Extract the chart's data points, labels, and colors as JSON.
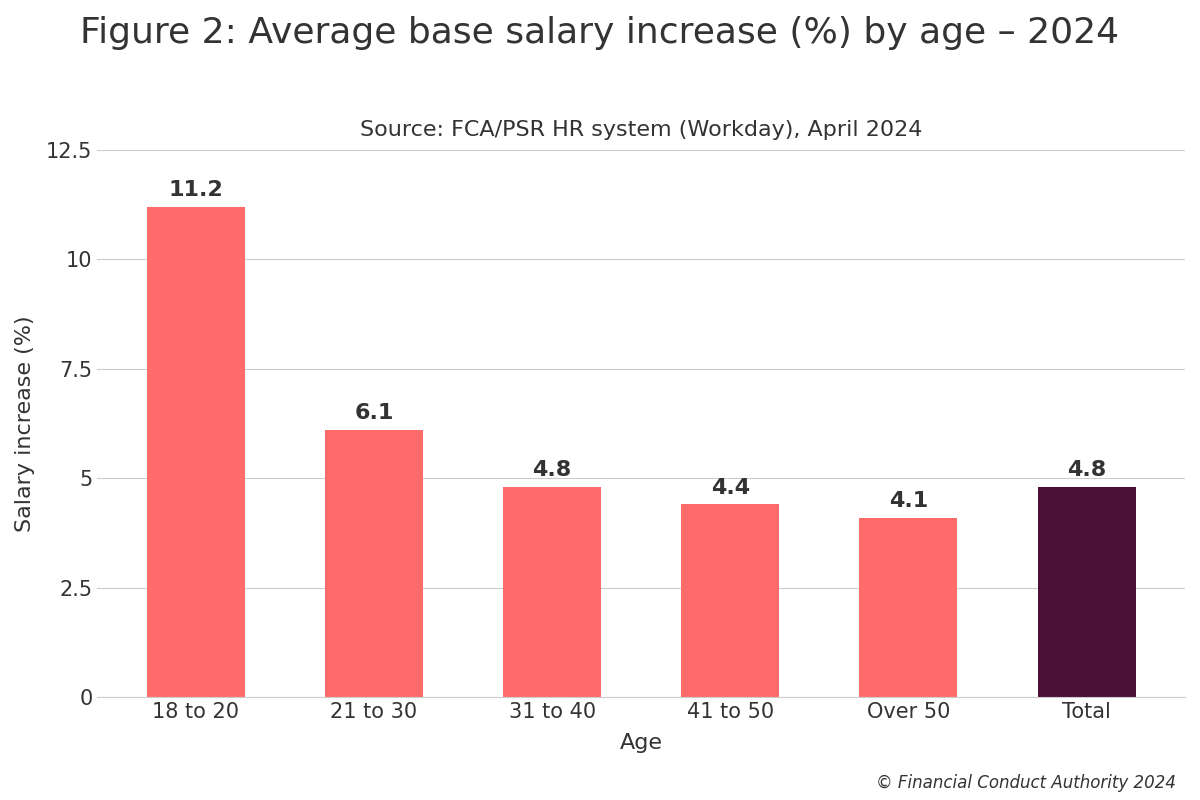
{
  "title": "Figure 2: Average base salary increase (%) by age – 2024",
  "subtitle": "Source: FCA/PSR HR system (Workday), April 2024",
  "categories": [
    "18 to 20",
    "21 to 30",
    "31 to 40",
    "41 to 50",
    "Over 50",
    "Total"
  ],
  "values": [
    11.2,
    6.1,
    4.8,
    4.4,
    4.1,
    4.8
  ],
  "bar_colors": [
    "#FF6B6B",
    "#FF6B6B",
    "#FF6B6B",
    "#FF6B6B",
    "#FF6B6B",
    "#4A1035"
  ],
  "xlabel": "Age",
  "ylabel": "Salary increase (%)",
  "ylim": [
    0,
    12.5
  ],
  "ytick_values": [
    0,
    2.5,
    5.0,
    7.5,
    10.0,
    12.5
  ],
  "ytick_labels": [
    "0",
    "2.5",
    "5",
    "7.5",
    "10",
    "12.5"
  ],
  "title_fontsize": 26,
  "subtitle_fontsize": 16,
  "axis_label_fontsize": 16,
  "tick_fontsize": 15,
  "bar_label_fontsize": 16,
  "footer_text": "© Financial Conduct Authority 2024",
  "background_color": "#FFFFFF",
  "grid_color": "#CCCCCC",
  "text_color": "#333333"
}
